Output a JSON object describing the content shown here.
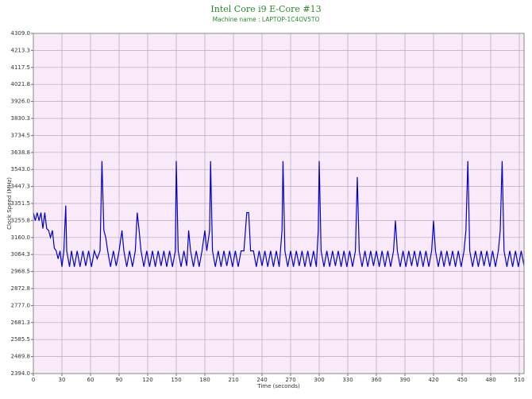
{
  "chart_data": {
    "type": "line",
    "title": "Intel Core i9 E-Core #13",
    "subtitle": "Machine name : LAPTOP-1C4OV5TO",
    "x_label": "Time (seconds)",
    "y_label": "Clock Speed (MHz)",
    "color": "#0000cc",
    "grid": true,
    "xlim": [
      0,
      515
    ],
    "ylim": [
      2394,
      4309
    ],
    "xticks": [
      0,
      30,
      60,
      90,
      120,
      150,
      180,
      210,
      240,
      270,
      300,
      330,
      360,
      390,
      420,
      450,
      480,
      510
    ],
    "yticks": [
      {
        "value": 2394,
        "label": "2394.0"
      },
      2489.8,
      2585.5,
      2681.3,
      {
        "value": 2777,
        "label": "2777.0"
      },
      2872.8,
      2968.5,
      3064.3,
      {
        "value": 3160,
        "label": "3160.0"
      },
      3255.8,
      3351.5,
      3447.3,
      {
        "value": 3543,
        "label": "3543.0"
      },
      3638.8,
      3734.5,
      3830.3,
      {
        "value": 3926,
        "label": "3926.0"
      },
      4021.8,
      4117.5,
      4213.3,
      {
        "value": 4309,
        "label": "4309.0"
      }
    ],
    "x": [
      0,
      2,
      4,
      6,
      8,
      10,
      12,
      14,
      16,
      18,
      20,
      22,
      24,
      26,
      28,
      30,
      32,
      34,
      35,
      38,
      40,
      43,
      46,
      49,
      52,
      55,
      58,
      61,
      64,
      67,
      70,
      72,
      74,
      76,
      78,
      81,
      84,
      87,
      90,
      93,
      95,
      98,
      101,
      104,
      107,
      109,
      111,
      113,
      116,
      119,
      122,
      125,
      128,
      131,
      134,
      137,
      140,
      143,
      146,
      149,
      150,
      152,
      155,
      158,
      161,
      163,
      165,
      168,
      171,
      174,
      177,
      180,
      182,
      185,
      186,
      188,
      191,
      194,
      197,
      200,
      203,
      206,
      209,
      212,
      215,
      218,
      221,
      224,
      226,
      228,
      231,
      234,
      237,
      240,
      243,
      246,
      249,
      252,
      255,
      258,
      261,
      262,
      264,
      267,
      270,
      273,
      276,
      279,
      282,
      285,
      288,
      291,
      294,
      297,
      299,
      300,
      302,
      305,
      308,
      311,
      314,
      317,
      320,
      323,
      326,
      329,
      332,
      335,
      338,
      340,
      342,
      345,
      348,
      351,
      354,
      357,
      360,
      363,
      366,
      369,
      372,
      375,
      378,
      380,
      382,
      385,
      388,
      391,
      394,
      397,
      400,
      403,
      406,
      409,
      412,
      415,
      418,
      420,
      422,
      425,
      428,
      431,
      434,
      437,
      440,
      443,
      446,
      449,
      452,
      454,
      456,
      458,
      461,
      464,
      467,
      470,
      473,
      476,
      479,
      482,
      485,
      488,
      490,
      492,
      494,
      497,
      500,
      503,
      506,
      509,
      512,
      515
    ],
    "values": [
      3300,
      3255,
      3300,
      3255,
      3300,
      3210,
      3300,
      3210,
      3200,
      3160,
      3200,
      3100,
      3085,
      3040,
      3085,
      2995,
      3085,
      3340,
      3085,
      2995,
      3085,
      2995,
      3085,
      2995,
      3085,
      3000,
      3085,
      2995,
      3085,
      3040,
      3085,
      3590,
      3200,
      3160,
      3085,
      2995,
      3085,
      3000,
      3085,
      3200,
      3085,
      2995,
      3085,
      2995,
      3085,
      3300,
      3200,
      3085,
      2995,
      3085,
      2995,
      3085,
      2995,
      3085,
      3000,
      3085,
      2995,
      3085,
      2995,
      3085,
      3590,
      3085,
      2995,
      3085,
      3000,
      3200,
      3085,
      2995,
      3085,
      2995,
      3085,
      3200,
      3085,
      3200,
      3590,
      3085,
      2995,
      3085,
      2995,
      3085,
      3000,
      3085,
      2995,
      3085,
      2995,
      3085,
      3085,
      3300,
      3300,
      3085,
      3085,
      2995,
      3085,
      3000,
      3085,
      2995,
      3085,
      2995,
      3085,
      2995,
      3200,
      3590,
      3085,
      2995,
      3085,
      2995,
      3085,
      3000,
      3085,
      2995,
      3085,
      2995,
      3085,
      2995,
      3200,
      3590,
      3085,
      2995,
      3085,
      2995,
      3085,
      3000,
      3085,
      2995,
      3085,
      2995,
      3085,
      2995,
      3085,
      3500,
      3085,
      2995,
      3085,
      2995,
      3085,
      3000,
      3085,
      2995,
      3085,
      2995,
      3085,
      2995,
      3085,
      3255,
      3085,
      2995,
      3085,
      2995,
      3085,
      3000,
      3085,
      2995,
      3085,
      2995,
      3085,
      2995,
      3085,
      3255,
      3085,
      2995,
      3085,
      2995,
      3085,
      3000,
      3085,
      2995,
      3085,
      2995,
      3085,
      3200,
      3590,
      3085,
      2995,
      3085,
      2995,
      3085,
      3000,
      3085,
      2995,
      3085,
      2995,
      3085,
      3200,
      3590,
      3085,
      2995,
      3085,
      2995,
      3085,
      2995,
      3085,
      3000
    ]
  }
}
